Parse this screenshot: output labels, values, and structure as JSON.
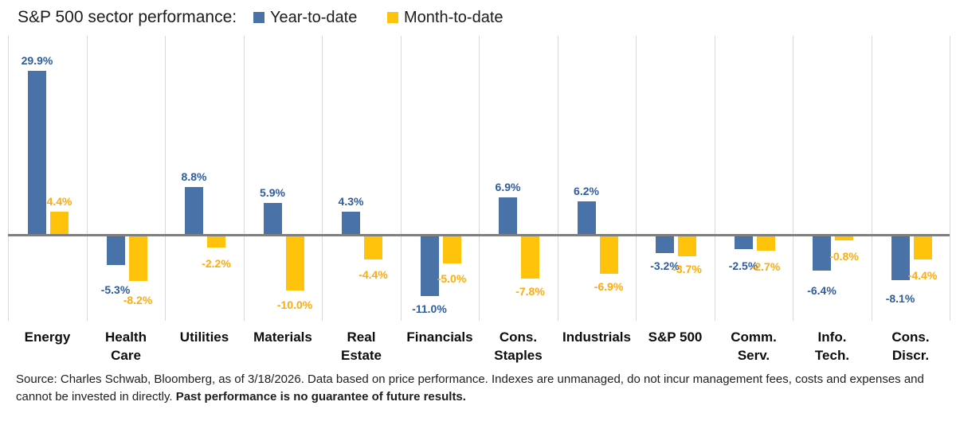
{
  "title": "S&P 500 sector performance:",
  "legend": {
    "items": [
      {
        "label": "Year-to-date",
        "color": "#4973A8"
      },
      {
        "label": "Month-to-date",
        "color": "#FFC30B"
      }
    ]
  },
  "chart_data": {
    "type": "bar",
    "title": "S&P 500 sector performance:",
    "categories": [
      "Energy",
      "Health Care",
      "Utilities",
      "Materials",
      "Real Estate",
      "Financials",
      "Cons. Staples",
      "Industrials",
      "S&P 500",
      "Comm. Serv.",
      "Info. Tech.",
      "Cons. Discr."
    ],
    "category_lines": [
      [
        "Energy"
      ],
      [
        "Health",
        "Care"
      ],
      [
        "Utilities"
      ],
      [
        "Materials"
      ],
      [
        "Real",
        "Estate"
      ],
      [
        "Financials"
      ],
      [
        "Cons.",
        "Staples"
      ],
      [
        "Industrials"
      ],
      [
        "S&P 500"
      ],
      [
        "Comm.",
        "Serv."
      ],
      [
        "Info.",
        "Tech."
      ],
      [
        "Cons.",
        "Discr."
      ]
    ],
    "series": [
      {
        "name": "Year-to-date",
        "color": "#4973A8",
        "label_color": "#2E5C9C",
        "values": [
          29.9,
          -5.3,
          8.8,
          5.9,
          4.3,
          -11.0,
          6.9,
          6.2,
          -3.2,
          -2.5,
          -6.4,
          -8.1
        ],
        "labels": [
          "29.9%",
          "-5.3%",
          "8.8%",
          "5.9%",
          "4.3%",
          "-11.0%",
          "6.9%",
          "6.2%",
          "-3.2%",
          "-2.5%",
          "-6.4%",
          "-8.1%"
        ]
      },
      {
        "name": "Month-to-date",
        "color": "#FFC30B",
        "label_color": "#FFAB0C",
        "values": [
          4.4,
          -8.2,
          -2.2,
          -10.0,
          -4.4,
          -5.0,
          -7.8,
          -6.9,
          -3.7,
          -2.7,
          -0.8,
          -4.4
        ],
        "labels": [
          "4.4%",
          "-8.2%",
          "-2.2%",
          "-10.0%",
          "-4.4%",
          "-5.0%",
          "-7.8%",
          "-6.9%",
          "-3.7%",
          "-2.7%",
          "-0.8%",
          "-4.4%"
        ]
      }
    ],
    "unit": "%",
    "ylim": [
      -15.5,
      36.3
    ],
    "zero_line": true,
    "grid": "vertical-category-separators",
    "legend_position": "top"
  },
  "footnote": {
    "line1": "Source: Charles Schwab, Bloomberg, as of 3/18/2026.  Data based on price performance. Indexes are unmanaged, do not incur management fees, costs and expenses and",
    "line2": "cannot be invested in directly.",
    "line2_bold": "Past performance is no guarantee of future results."
  }
}
